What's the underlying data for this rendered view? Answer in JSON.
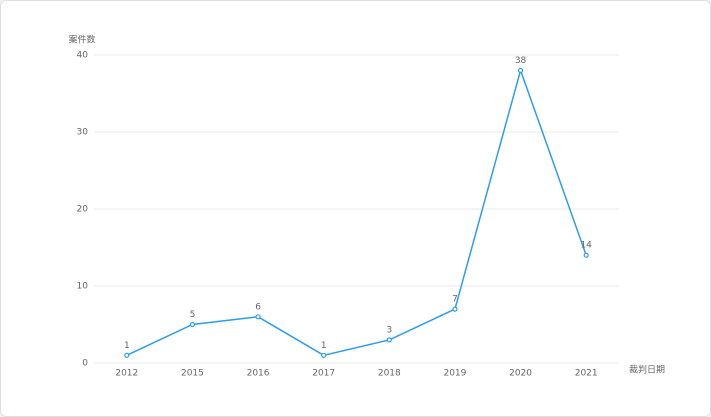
{
  "chart_data": {
    "type": "line",
    "y_axis_label": "案件数",
    "x_axis_label": "裁判日期",
    "categories": [
      "2012",
      "2015",
      "2016",
      "2017",
      "2018",
      "2019",
      "2020",
      "2021"
    ],
    "series": [
      {
        "name": "案件数",
        "color": "#2d9cf0",
        "values": [
          1,
          5,
          6,
          1,
          3,
          7,
          38,
          14
        ]
      }
    ],
    "ylim": [
      0,
      40
    ],
    "yticks": [
      0,
      10,
      20,
      30,
      40
    ],
    "grid": true
  }
}
